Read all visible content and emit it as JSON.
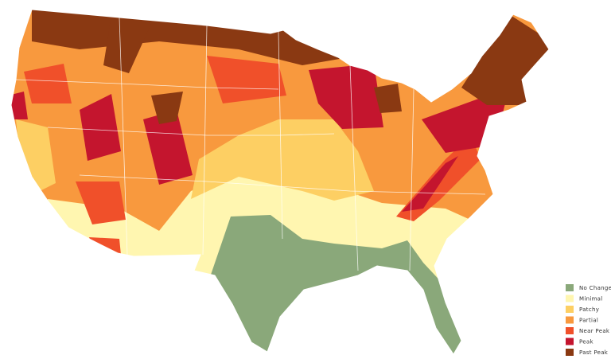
{
  "legend": {
    "items": [
      {
        "label": "No Change",
        "color": "#8aa87a"
      },
      {
        "label": "Minimal",
        "color": "#fff6b0"
      },
      {
        "label": "Patchy",
        "color": "#fdcf63"
      },
      {
        "label": "Partial",
        "color": "#f8993e"
      },
      {
        "label": "Near Peak",
        "color": "#f0502a"
      },
      {
        "label": "Peak",
        "color": "#c4152e"
      },
      {
        "label": "Past Peak",
        "color": "#8a3912"
      }
    ]
  }
}
